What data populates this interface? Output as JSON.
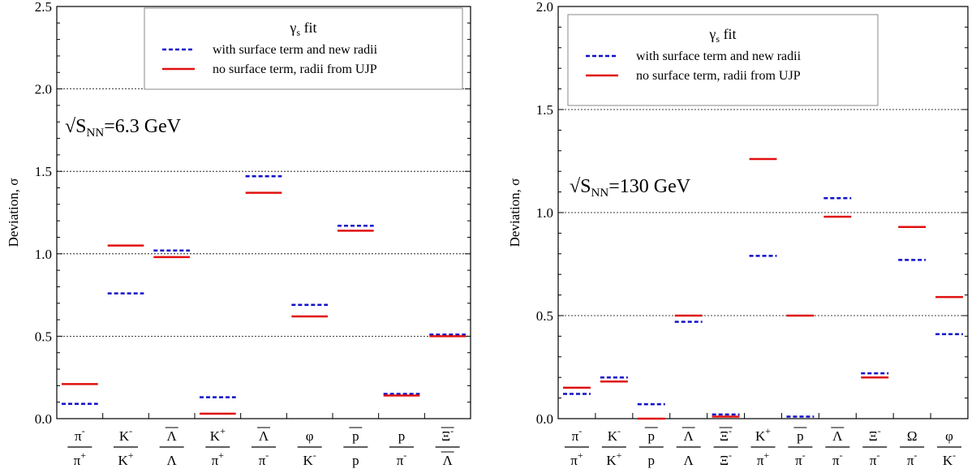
{
  "chart_data": [
    {
      "type": "dash-bar",
      "ylabel": "Deviation, σ",
      "ylim": [
        0,
        2.5
      ],
      "yticks": [
        "0.0",
        "0.5",
        "1.0",
        "1.5",
        "2.0",
        "2.5"
      ],
      "grid_lines": [
        0.5,
        1.0,
        1.5,
        2.0
      ],
      "legend": {
        "title": "γ",
        "title_sub": "s",
        "title_suffix": " fit",
        "placement": "top-right",
        "entries": [
          {
            "label": "with surface term and new radii",
            "color": "#1010c8",
            "style": "dashed"
          },
          {
            "label": "no surface term, radii from UJP",
            "color": "#e01010",
            "style": "solid"
          }
        ]
      },
      "annotation": {
        "prefix": "√S",
        "sub": "NN",
        "suffix": "=6.3 GeV"
      },
      "categories": [
        {
          "num": "π",
          "num_sup": "-",
          "den": "π",
          "den_sup": "+",
          "num_bar": false,
          "den_bar": false
        },
        {
          "num": "K",
          "num_sup": "-",
          "den": "K",
          "den_sup": "+",
          "num_bar": false,
          "den_bar": false
        },
        {
          "num": "Λ",
          "num_sup": "",
          "den": "Λ",
          "den_sup": "",
          "num_bar": true,
          "den_bar": false
        },
        {
          "num": "K",
          "num_sup": "+",
          "den": "π",
          "den_sup": "+",
          "num_bar": false,
          "den_bar": false
        },
        {
          "num": "Λ",
          "num_sup": "",
          "den": "π",
          "den_sup": "-",
          "num_bar": true,
          "den_bar": false
        },
        {
          "num": "φ",
          "num_sup": "",
          "den": "K",
          "den_sup": "-",
          "num_bar": false,
          "den_bar": false
        },
        {
          "num": "p",
          "num_sup": "",
          "den": "p",
          "den_sup": "",
          "num_bar": true,
          "den_bar": false
        },
        {
          "num": "p",
          "num_sup": "",
          "den": "π",
          "den_sup": "-",
          "num_bar": false,
          "den_bar": false
        },
        {
          "num": "Ξ",
          "num_sup": "-",
          "den": "Λ",
          "den_sup": "",
          "num_bar": true,
          "den_bar": true
        }
      ],
      "series": [
        {
          "values": [
            0.09,
            0.76,
            1.02,
            0.13,
            1.47,
            0.69,
            1.17,
            0.15,
            0.51
          ]
        },
        {
          "values": [
            0.21,
            1.05,
            0.98,
            0.03,
            1.37,
            0.62,
            1.14,
            0.14,
            0.5
          ]
        }
      ]
    },
    {
      "type": "dash-bar",
      "ylabel": "Deviation, σ",
      "ylim": [
        0,
        2.0
      ],
      "yticks": [
        "0.0",
        "0.5",
        "1.0",
        "1.5",
        "2.0"
      ],
      "grid_lines": [
        0.5,
        1.0,
        1.5
      ],
      "legend": {
        "title": "γ",
        "title_sub": "s",
        "title_suffix": " fit",
        "placement": "top-left",
        "entries": [
          {
            "label": "with surface term and new radii",
            "color": "#1010c8",
            "style": "dashed"
          },
          {
            "label": "no surface term, radii from UJP",
            "color": "#e01010",
            "style": "solid"
          }
        ]
      },
      "annotation": {
        "prefix": "√S",
        "sub": "NN",
        "suffix": "=130 GeV"
      },
      "categories": [
        {
          "num": "π",
          "num_sup": "-",
          "den": "π",
          "den_sup": "+",
          "num_bar": false,
          "den_bar": false
        },
        {
          "num": "K",
          "num_sup": "-",
          "den": "K",
          "den_sup": "+",
          "num_bar": false,
          "den_bar": false
        },
        {
          "num": "p",
          "num_sup": "",
          "den": "p",
          "den_sup": "",
          "num_bar": true,
          "den_bar": false
        },
        {
          "num": "Λ",
          "num_sup": "",
          "den": "Λ",
          "den_sup": "",
          "num_bar": true,
          "den_bar": false
        },
        {
          "num": "Ξ",
          "num_sup": "-",
          "den": "Ξ",
          "den_sup": "-",
          "num_bar": true,
          "den_bar": false
        },
        {
          "num": "K",
          "num_sup": "+",
          "den": "π",
          "den_sup": "+",
          "num_bar": false,
          "den_bar": false
        },
        {
          "num": "p",
          "num_sup": "",
          "den": "π",
          "den_sup": "-",
          "num_bar": true,
          "den_bar": false
        },
        {
          "num": "Λ",
          "num_sup": "",
          "den": "π",
          "den_sup": "-",
          "num_bar": true,
          "den_bar": false
        },
        {
          "num": "Ξ",
          "num_sup": "-",
          "den": "π",
          "den_sup": "-",
          "num_bar": false,
          "den_bar": false
        },
        {
          "num": "Ω",
          "num_sup": "",
          "den": "π",
          "den_sup": "-",
          "num_bar": false,
          "den_bar": false
        },
        {
          "num": "φ",
          "num_sup": "",
          "den": "K",
          "den_sup": "-",
          "num_bar": false,
          "den_bar": false
        }
      ],
      "series": [
        {
          "values": [
            0.12,
            0.2,
            0.07,
            0.47,
            0.02,
            0.79,
            0.01,
            1.07,
            0.22,
            0.77,
            0.41
          ]
        },
        {
          "values": [
            0.15,
            0.18,
            0.0,
            0.5,
            0.01,
            1.26,
            0.5,
            0.98,
            0.2,
            0.93,
            0.59
          ]
        }
      ]
    }
  ]
}
